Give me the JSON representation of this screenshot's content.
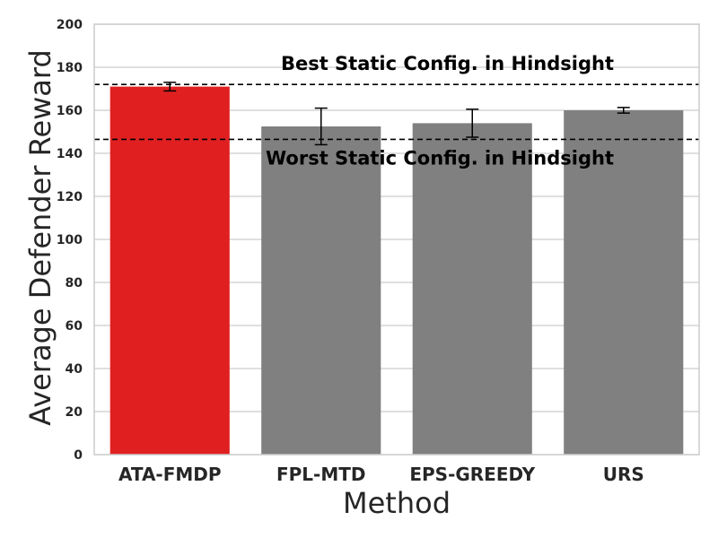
{
  "chart_data": {
    "type": "bar",
    "title": "",
    "xlabel": "Method",
    "ylabel": "Average Defender Reward",
    "categories": [
      "ATA-FMDP",
      "FPL-MTD",
      "EPS-GREEDY",
      "URS"
    ],
    "values": [
      171,
      152.5,
      154,
      160
    ],
    "errors": [
      2,
      8.5,
      6.5,
      1.3
    ],
    "colors": [
      "#e02020",
      "#808080",
      "#808080",
      "#808080"
    ],
    "ylim": [
      0,
      200
    ],
    "yticks": [
      "0",
      "20",
      "40",
      "60",
      "80",
      "100",
      "120",
      "140",
      "160",
      "180",
      "200"
    ],
    "grid": true,
    "reference_lines": [
      {
        "label": "Best Static Config. in Hindsight",
        "value": 172,
        "label_position": "above"
      },
      {
        "label": "Worst Static Config. in Hindsight",
        "value": 146.5,
        "label_position": "below"
      }
    ]
  }
}
